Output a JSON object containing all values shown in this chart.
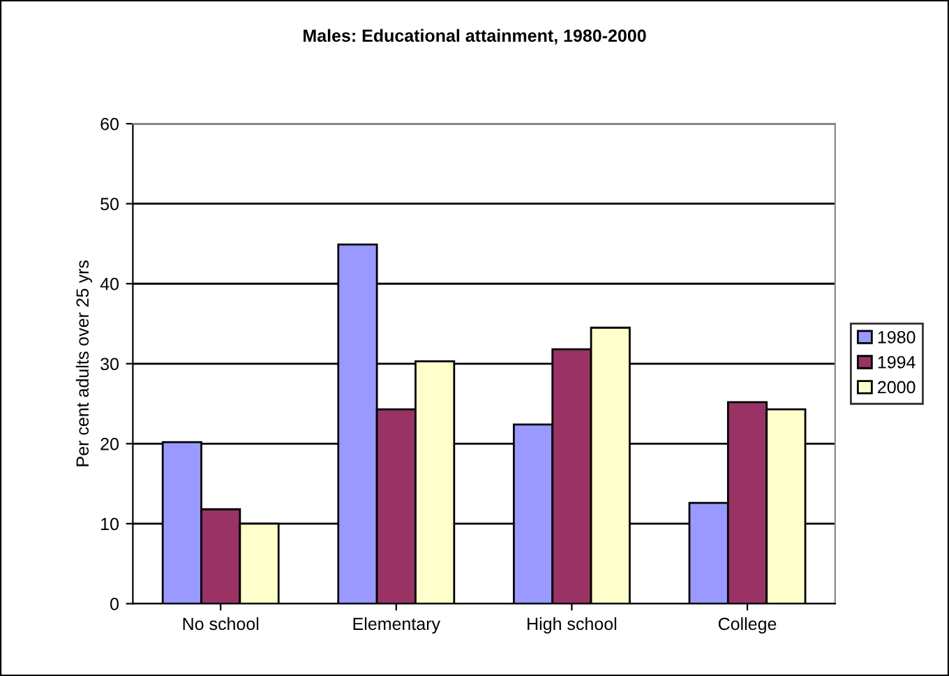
{
  "chart_data": {
    "type": "bar",
    "title": "Males: Educational attainment, 1980-2000",
    "ylabel": "Per cent adults over 25 yrs",
    "categories": [
      "No school",
      "Elementary",
      "High school",
      "College"
    ],
    "series": [
      {
        "name": "1980",
        "color": "#9999ff",
        "values": [
          20.2,
          44.9,
          22.4,
          12.6
        ]
      },
      {
        "name": "1994",
        "color": "#993366",
        "values": [
          11.8,
          24.3,
          31.8,
          25.2
        ]
      },
      {
        "name": "2000",
        "color": "#ffffcc",
        "values": [
          10.0,
          30.3,
          34.5,
          24.3
        ]
      }
    ],
    "ylim": [
      0,
      60
    ],
    "yticks": [
      0,
      10,
      20,
      30,
      40,
      50,
      60
    ],
    "grid": "y",
    "legend": "right"
  }
}
